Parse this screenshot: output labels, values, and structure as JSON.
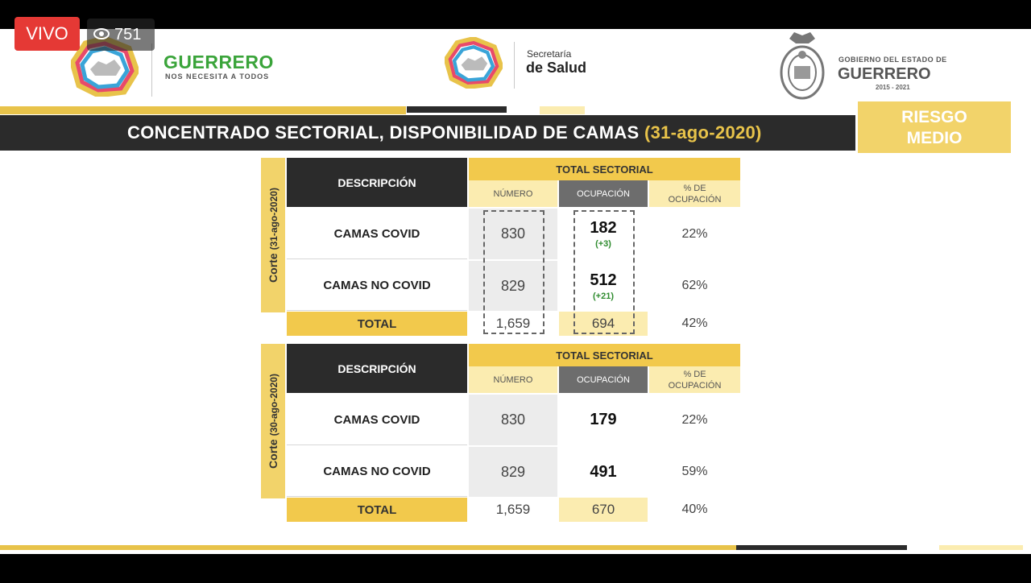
{
  "stream": {
    "live_label": "VIVO",
    "viewer_count": "751"
  },
  "header": {
    "guerrero_title": "GUERRERO",
    "guerrero_subtitle": "NOS NECESITA A TODOS",
    "secretaria_line1": "Secretaría",
    "secretaria_line2": "de Salud",
    "gobierno_line1": "GOBIERNO DEL ESTADO DE",
    "gobierno_line2": "GUERRERO",
    "gobierno_line3": "2015 - 2021"
  },
  "title": {
    "main": "CONCENTRADO SECTORIAL, DISPONIBILIDAD DE CAMAS",
    "date": "(31-ago-2020)"
  },
  "risk": {
    "line1": "RIESGO",
    "line2": "MEDIO"
  },
  "tables": [
    {
      "corte_label": "Corte",
      "corte_date": "(31-ago-2020)",
      "desc_header": "DESCRIPCIÓN",
      "total_header": "TOTAL SECTORIAL",
      "numero_header": "NÚMERO",
      "ocupacion_header": "OCUPACIÓN",
      "pct_header_1": "% DE",
      "pct_header_2": "OCUPACIÓN",
      "rows": [
        {
          "label": "CAMAS COVID",
          "numero": "830",
          "ocupacion": "182",
          "delta": "(+3)",
          "pct": "22%"
        },
        {
          "label": "CAMAS NO COVID",
          "numero": "829",
          "ocupacion": "512",
          "delta": "(+21)",
          "pct": "62%"
        }
      ],
      "total": {
        "label": "TOTAL",
        "numero": "1,659",
        "ocupacion": "694",
        "pct": "42%"
      }
    },
    {
      "corte_label": "Corte",
      "corte_date": "(30-ago-2020)",
      "desc_header": "DESCRIPCIÓN",
      "total_header": "TOTAL SECTORIAL",
      "numero_header": "NÚMERO",
      "ocupacion_header": "OCUPACIÓN",
      "pct_header_1": "% DE",
      "pct_header_2": "OCUPACIÓN",
      "rows": [
        {
          "label": "CAMAS COVID",
          "numero": "830",
          "ocupacion": "179",
          "delta": "",
          "pct": "22%"
        },
        {
          "label": "CAMAS NO COVID",
          "numero": "829",
          "ocupacion": "491",
          "delta": "",
          "pct": "59%"
        }
      ],
      "total": {
        "label": "TOTAL",
        "numero": "1,659",
        "ocupacion": "670",
        "pct": "40%"
      }
    }
  ],
  "colors": {
    "gold": "#f2c94c",
    "dark": "#2b2b2b",
    "live_red": "#e53935",
    "delta_green": "#2e8b2e"
  }
}
